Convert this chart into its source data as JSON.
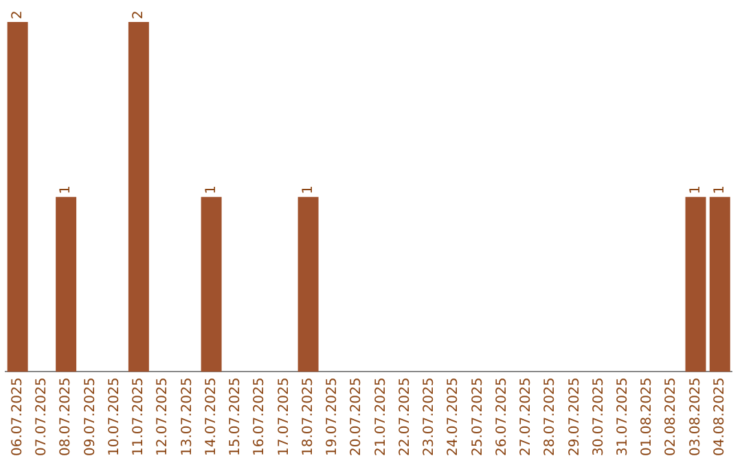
{
  "chart_data": {
    "type": "bar",
    "categories": [
      "06.07.2025",
      "07.07.2025",
      "08.07.2025",
      "09.07.2025",
      "10.07.2025",
      "11.07.2025",
      "12.07.2025",
      "13.07.2025",
      "14.07.2025",
      "15.07.2025",
      "16.07.2025",
      "17.07.2025",
      "18.07.2025",
      "19.07.2025",
      "20.07.2025",
      "21.07.2025",
      "22.07.2025",
      "23.07.2025",
      "24.07.2025",
      "25.07.2025",
      "26.07.2025",
      "27.07.2025",
      "28.07.2025",
      "29.07.2025",
      "30.07.2025",
      "31.07.2025",
      "01.08.2025",
      "02.08.2025",
      "03.08.2025",
      "04.08.2025"
    ],
    "values": [
      2,
      0,
      1,
      0,
      0,
      2,
      0,
      0,
      1,
      0,
      0,
      0,
      1,
      0,
      0,
      0,
      0,
      0,
      0,
      0,
      0,
      0,
      0,
      0,
      0,
      0,
      0,
      0,
      1,
      1
    ],
    "value_labels": [
      "2",
      null,
      "1",
      null,
      null,
      "2",
      null,
      null,
      "1",
      null,
      null,
      null,
      "1",
      null,
      null,
      null,
      null,
      null,
      null,
      null,
      null,
      null,
      null,
      null,
      null,
      null,
      null,
      null,
      "1",
      "1"
    ],
    "color": "#a0522d",
    "grid": false,
    "legend": false
  }
}
